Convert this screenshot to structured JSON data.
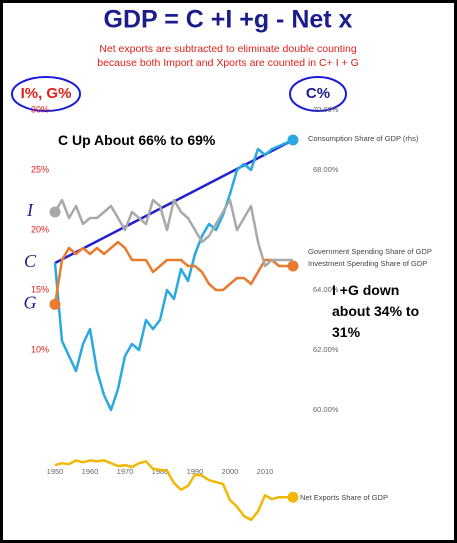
{
  "chart_data": [
    {
      "type": "line",
      "title": "GDP = C +I +g - Net x",
      "subtitle": [
        "Net exports are subtracted to eliminate double counting",
        "because both Import and Xports are counted in C+ I + G"
      ],
      "left_axis_label": "I%, G%",
      "right_axis_label": "C%",
      "annotations": [
        "C Up About 66% to 69%",
        "I +G down about 34% to 31%"
      ],
      "x": [
        1950,
        1952,
        1954,
        1956,
        1958,
        1960,
        1962,
        1964,
        1966,
        1968,
        1970,
        1972,
        1974,
        1976,
        1978,
        1980,
        1982,
        1984,
        1986,
        1988,
        1990,
        1992,
        1994,
        1996,
        1998,
        2000,
        2002,
        2004,
        2006,
        2008,
        2010,
        2012,
        2014,
        2016,
        2018
      ],
      "xlim": [
        1947,
        2020
      ],
      "xticks": [
        1950,
        1960,
        1970,
        1980,
        1990,
        2000,
        2010
      ],
      "ylim": [
        2.5,
        30
      ],
      "yticks": [
        {
          "value": 10,
          "label": "10%"
        },
        {
          "value": 15,
          "label": "15%"
        },
        {
          "value": 20,
          "label": "20%"
        },
        {
          "value": 25,
          "label": "25%"
        },
        {
          "value": 30,
          "label": "30%"
        }
      ],
      "y2lim": [
        59,
        70
      ],
      "y2ticks": [
        {
          "value": 60,
          "label": "60.00%"
        },
        {
          "value": 62,
          "label": "62.00%"
        },
        {
          "value": 64,
          "label": "64.00%"
        },
        {
          "value": 68,
          "label": "68.00%"
        },
        {
          "value": 70,
          "label": "70.00%"
        }
      ],
      "grid": false,
      "series": [
        {
          "name": "Consumption Share of GDP (rhs)",
          "letter": "C",
          "color": "#29a9e0",
          "axis": "y2",
          "markers": [
            "end"
          ],
          "values": [
            64.9,
            62.3,
            61.8,
            61.3,
            62.2,
            62.7,
            61.3,
            60.5,
            60.0,
            60.7,
            61.8,
            62.2,
            62.0,
            63.0,
            62.7,
            63.0,
            64.0,
            63.7,
            64.7,
            64.3,
            65.2,
            65.8,
            66.2,
            66.0,
            66.5,
            67.2,
            68.0,
            68.2,
            68.0,
            68.7,
            68.5,
            68.7,
            68.8,
            68.9,
            69.0
          ]
        },
        {
          "name": "Government Spending Share of GDP",
          "letter": "G",
          "color": "#e87b2e",
          "markers": [
            "start",
            "end"
          ],
          "values": [
            13.8,
            17.5,
            18.5,
            18.0,
            18.5,
            18.0,
            18.5,
            18.0,
            18.5,
            19.0,
            18.5,
            17.5,
            17.5,
            17.5,
            16.5,
            17.0,
            17.5,
            17.5,
            17.5,
            17.0,
            17.0,
            16.5,
            15.5,
            15.0,
            15.0,
            15.5,
            16.0,
            16.0,
            15.5,
            16.5,
            17.5,
            17.5,
            17.0,
            17.0,
            17.0
          ]
        },
        {
          "name": "Investment Spending Share of GDP",
          "letter": "I",
          "color": "#a9a9a9",
          "markers": [
            "start"
          ],
          "values": [
            21.5,
            22.5,
            21.0,
            22.0,
            20.5,
            21.0,
            21.0,
            21.5,
            22.0,
            21.0,
            20.0,
            21.5,
            21.0,
            20.5,
            22.5,
            22.0,
            20.0,
            22.5,
            21.5,
            21.0,
            20.0,
            19.0,
            19.5,
            20.5,
            21.5,
            22.5,
            20.0,
            21.0,
            22.0,
            19.0,
            17.0,
            17.5,
            17.5,
            17.5,
            17.5
          ]
        }
      ],
      "trend": {
        "x": [
          1950,
          2018
        ],
        "values": [
          64.9,
          69.0
        ],
        "color": "#2020d0"
      }
    },
    {
      "type": "line",
      "x": [
        1950,
        1952,
        1954,
        1956,
        1958,
        1960,
        1962,
        1964,
        1966,
        1968,
        1970,
        1972,
        1974,
        1976,
        1978,
        1980,
        1982,
        1984,
        1986,
        1988,
        1990,
        1992,
        1994,
        1996,
        1998,
        2000,
        2002,
        2004,
        2006,
        2008,
        2010,
        2012,
        2014,
        2016,
        2018
      ],
      "xlim": [
        1947,
        2020
      ],
      "ylim": [
        -7,
        2
      ],
      "series": [
        {
          "name": "Net Exports Share of GDP",
          "color": "#f2b705",
          "markers": [
            "end"
          ],
          "values": [
            0.4,
            0.6,
            0.5,
            0.9,
            0.7,
            0.9,
            0.8,
            0.9,
            0.6,
            0.3,
            0.4,
            0.2,
            0.6,
            0.8,
            0.0,
            -0.1,
            -0.2,
            -1.5,
            -2.2,
            -1.8,
            -0.6,
            -0.7,
            -1.2,
            -1.4,
            -1.6,
            -3.3,
            -4.0,
            -5.0,
            -5.4,
            -4.5,
            -2.8,
            -3.2,
            -3.0,
            -3.0,
            -3.0
          ]
        }
      ]
    }
  ]
}
